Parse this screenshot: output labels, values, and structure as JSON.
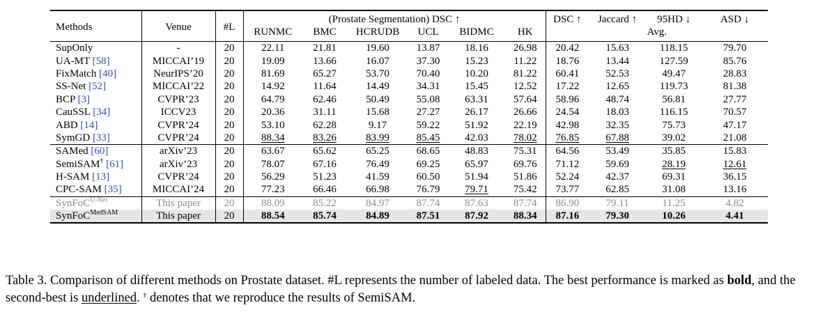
{
  "header": {
    "methods": "Methods",
    "venue": "Venue",
    "numL": "#L",
    "group_title": "(Prostate Segmentation) DSC ↑",
    "sites": [
      "RUNMC",
      "BMC",
      "HCRUDB",
      "UCL",
      "BIDMC",
      "HK"
    ],
    "avg_metrics": [
      "DSC ↑",
      "Jaccard ↑",
      "95HD ↓",
      "ASD ↓"
    ],
    "avg_label": "Avg."
  },
  "groups": [
    [
      {
        "name": "SupOnly",
        "ref": "",
        "sup": "",
        "venue": "-",
        "L": "20",
        "vals": [
          "22.11",
          "21.81",
          "19.60",
          "13.87",
          "18.16",
          "26.98",
          "20.42",
          "15.63",
          "118.15",
          "79.70"
        ],
        "bold": [],
        "ul": []
      },
      {
        "name": "UA-MT ",
        "ref": "[58]",
        "sup": "",
        "venue": "MICCAI’19",
        "L": "20",
        "vals": [
          "19.09",
          "13.66",
          "16.07",
          "37.30",
          "15.23",
          "11.22",
          "18.76",
          "13.44",
          "127.59",
          "85.76"
        ],
        "bold": [],
        "ul": []
      },
      {
        "name": "FixMatch ",
        "ref": "[40]",
        "sup": "",
        "venue": "NeurIPS’20",
        "L": "20",
        "vals": [
          "81.69",
          "65.27",
          "53.70",
          "70.40",
          "10.20",
          "81.22",
          "60.41",
          "52.53",
          "49.47",
          "28.83"
        ],
        "bold": [],
        "ul": []
      },
      {
        "name": "SS-Net ",
        "ref": "[52]",
        "sup": "",
        "venue": "MICCAI’22",
        "L": "20",
        "vals": [
          "14.92",
          "11.64",
          "14.49",
          "34.31",
          "15.45",
          "12.52",
          "17.22",
          "12.65",
          "119.73",
          "81.38"
        ],
        "bold": [],
        "ul": []
      },
      {
        "name": "BCP ",
        "ref": "[3]",
        "sup": "",
        "venue": "CVPR’23",
        "L": "20",
        "vals": [
          "64.79",
          "62.46",
          "50.49",
          "55.08",
          "63.31",
          "57.64",
          "58.96",
          "48.74",
          "56.81",
          "27.77"
        ],
        "bold": [],
        "ul": []
      },
      {
        "name": "CauSSL ",
        "ref": "[34]",
        "sup": "",
        "venue": "ICCV23",
        "L": "20",
        "vals": [
          "20.36",
          "31.11",
          "15.68",
          "27.27",
          "26.17",
          "26.66",
          "24.54",
          "18.03",
          "116.15",
          "70.57"
        ],
        "bold": [],
        "ul": []
      },
      {
        "name": "ABD ",
        "ref": "[14]",
        "sup": "",
        "venue": "CVPR’24",
        "L": "20",
        "vals": [
          "53.10",
          "62.28",
          "9.17",
          "59.22",
          "51.92",
          "22.19",
          "42.98",
          "32.35",
          "75.73",
          "47.17"
        ],
        "bold": [],
        "ul": []
      },
      {
        "name": "SymGD ",
        "ref": "[33]",
        "sup": "",
        "venue": "CVPR’24",
        "L": "20",
        "vals": [
          "88.34",
          "83.26",
          "83.99",
          "85.45",
          "42.03",
          "78.02",
          "76.85",
          "67.88",
          "39.02",
          "21.08"
        ],
        "bold": [],
        "ul": [
          0,
          1,
          2,
          3,
          5,
          6,
          7
        ]
      }
    ],
    [
      {
        "name": "SAMed ",
        "ref": "[60]",
        "sup": "",
        "venue": "arXiv’23",
        "L": "20",
        "vals": [
          "63.67",
          "65.62",
          "65.25",
          "68.65",
          "48.83",
          "75.31",
          "64.56",
          "53.49",
          "35.85",
          "15.83"
        ],
        "bold": [],
        "ul": []
      },
      {
        "name": "SemiSAM",
        "ref": "[61]",
        "sup": "†",
        "venue": "arXiv’23",
        "L": "20",
        "vals": [
          "78.07",
          "67.16",
          "76.49",
          "69.25",
          "65.97",
          "69.76",
          "71.12",
          "59.69",
          "28.19",
          "12.61"
        ],
        "bold": [],
        "ul": [
          8,
          9
        ]
      },
      {
        "name": "H-SAM ",
        "ref": "[13]",
        "sup": "",
        "venue": "CVPR’24",
        "L": "20",
        "vals": [
          "56.29",
          "51.23",
          "41.59",
          "60.50",
          "51.94",
          "51.86",
          "52.24",
          "42.37",
          "69.31",
          "36.15"
        ],
        "bold": [],
        "ul": []
      },
      {
        "name": "CPC-SAM ",
        "ref": "[35]",
        "sup": "",
        "venue": "MICCAI’24",
        "L": "20",
        "vals": [
          "77.23",
          "66.46",
          "66.98",
          "76.79",
          "79.71",
          "75.42",
          "73.77",
          "62.85",
          "31.08",
          "13.16"
        ],
        "bold": [],
        "ul": [
          4
        ]
      }
    ],
    [
      {
        "name": "SynFoC",
        "ref": "",
        "sup": "U-Net",
        "venue": "This paper",
        "L": "20",
        "vals": [
          "88.09",
          "85.22",
          "84.97",
          "87.74",
          "87.63",
          "87.74",
          "86.90",
          "79.11",
          "11.25",
          "4.82"
        ],
        "bold": [],
        "ul": [],
        "style": "grey"
      },
      {
        "name": "SynFoC",
        "ref": "",
        "sup": "MedSAM",
        "venue": "This paper",
        "L": "20",
        "vals": [
          "88.54",
          "85.74",
          "84.89",
          "87.51",
          "87.92",
          "88.34",
          "87.16",
          "79.30",
          "10.26",
          "4.41"
        ],
        "bold": [
          0,
          1,
          2,
          3,
          4,
          5,
          6,
          7,
          8,
          9
        ],
        "ul": [],
        "style": "shade"
      }
    ]
  ],
  "caption": {
    "p1": "Table 3. Comparison of different methods on Prostate dataset. #L represents the number of labeled data. The best performance is marked as ",
    "bold_word": "bold",
    "p2": ", and the second-best is ",
    "underlined_word": "underlined",
    "p3": ". ",
    "dagger": "†",
    "p4": " denotes that we reproduce the results of SemiSAM."
  },
  "colors": {
    "citation": "#2b4fb8",
    "highlight_row": "#e6e6e6",
    "grey_text": "#8c8c8c"
  }
}
